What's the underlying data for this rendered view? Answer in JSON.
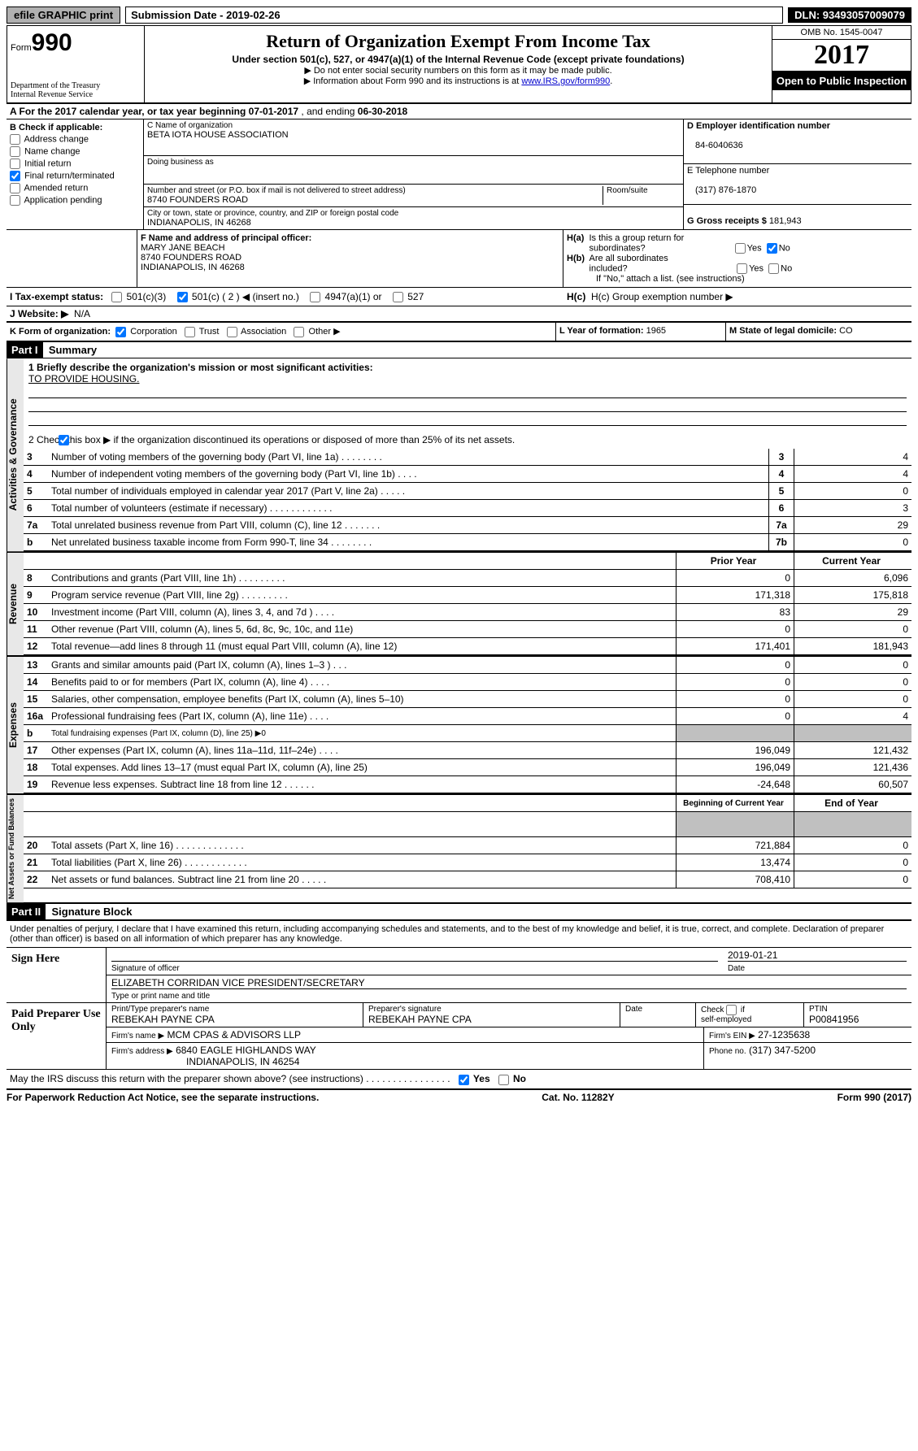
{
  "top": {
    "efile": "efile GRAPHIC print",
    "submission_label": "Submission Date - 2019-02-26",
    "dln": "DLN: 93493057009079"
  },
  "header": {
    "form_prefix": "Form",
    "form_number": "990",
    "dept": "Department of the Treasury",
    "irs": "Internal Revenue Service",
    "title": "Return of Organization Exempt From Income Tax",
    "subtitle": "Under section 501(c), 527, or 4947(a)(1) of the Internal Revenue Code (except private foundations)",
    "note1": "▶ Do not enter social security numbers on this form as it may be made public.",
    "note2_pre": "▶ Information about Form 990 and its instructions is at ",
    "note2_link": "www.IRS.gov/form990",
    "note2_post": ".",
    "omb": "OMB No. 1545-0047",
    "year": "2017",
    "open": "Open to Public Inspection"
  },
  "sectionA": {
    "label": "A  For the 2017 calendar year, or tax year beginning ",
    "begin": "07-01-2017",
    "mid": "  , and ending ",
    "end": "06-30-2018"
  },
  "b": {
    "label": "B Check if applicable:",
    "items": [
      "Address change",
      "Name change",
      "Initial return",
      "Final return/terminated",
      "Amended return",
      "Application pending"
    ],
    "checked_index": 3
  },
  "c": {
    "name_label": "C Name of organization",
    "name": "BETA IOTA HOUSE ASSOCIATION",
    "dba_label": "Doing business as",
    "dba": "",
    "street_label": "Number and street (or P.O. box if mail is not delivered to street address)",
    "room_label": "Room/suite",
    "street": "8740 FOUNDERS ROAD",
    "city_label": "City or town, state or province, country, and ZIP or foreign postal code",
    "city": "INDIANAPOLIS, IN  46268"
  },
  "d": {
    "label": "D Employer identification number",
    "val": "84-6040636"
  },
  "e": {
    "label": "E Telephone number",
    "val": "(317) 876-1870"
  },
  "g": {
    "label": "G Gross receipts $",
    "val": "181,943"
  },
  "f": {
    "label": "F  Name and address of principal officer:",
    "name": "MARY JANE BEACH",
    "street": "8740 FOUNDERS ROAD",
    "city": "INDIANAPOLIS, IN  46268"
  },
  "h": {
    "a_label": "H(a)  Is this a group return for subordinates?",
    "b_label": "H(b)  Are all subordinates included?",
    "note": "If \"No,\" attach a list. (see instructions)",
    "c_label": "H(c)  Group exemption number ▶",
    "yes": "Yes",
    "no": "No"
  },
  "i": {
    "label": "I  Tax-exempt status:",
    "opts": [
      "501(c)(3)",
      "501(c) ( 2 ) ◀ (insert no.)",
      "4947(a)(1) or",
      "527"
    ],
    "checked_index": 1
  },
  "j": {
    "label": "J  Website: ▶",
    "val": "N/A"
  },
  "k": {
    "label": "K Form of organization:",
    "opts": [
      "Corporation",
      "Trust",
      "Association",
      "Other ▶"
    ],
    "checked_index": 0
  },
  "l": {
    "label": "L Year of formation:",
    "val": "1965"
  },
  "m": {
    "label": "M State of legal domicile:",
    "val": "CO"
  },
  "part1": {
    "header": "Part I",
    "title": "Summary"
  },
  "governance": {
    "title": "Activities & Governance",
    "line1_label": "1  Briefly describe the organization's mission or most significant activities:",
    "mission": "TO PROVIDE HOUSING.",
    "line2": "2   Check this box ▶      if the organization discontinued its operations or disposed of more than 25% of its net assets.",
    "rows": [
      {
        "n": "3",
        "desc": "Number of voting members of the governing body (Part VI, line 1a)   .    .    .    .    .    .    .    .",
        "cell": "3",
        "v": "4"
      },
      {
        "n": "4",
        "desc": "Number of independent voting members of the governing body (Part VI, line 1b)   .    .    .    .",
        "cell": "4",
        "v": "4"
      },
      {
        "n": "5",
        "desc": "Total number of individuals employed in calendar year 2017 (Part V, line 2a)   .    .    .    .    .",
        "cell": "5",
        "v": "0"
      },
      {
        "n": "6",
        "desc": "Total number of volunteers (estimate if necessary)   .    .    .    .    .    .    .    .    .    .    .    .",
        "cell": "6",
        "v": "3"
      },
      {
        "n": "7a",
        "desc": "Total unrelated business revenue from Part VIII, column (C), line 12   .    .    .    .    .    .    .",
        "cell": "7a",
        "v": "29"
      },
      {
        "n": "b",
        "desc": "Net unrelated business taxable income from Form 990-T, line 34   .    .    .    .    .    .    .    .",
        "cell": "7b",
        "v": "0"
      }
    ]
  },
  "revenue": {
    "title": "Revenue",
    "header": {
      "py": "Prior Year",
      "cy": "Current Year"
    },
    "rows": [
      {
        "n": "8",
        "desc": "Contributions and grants (Part VIII, line 1h)   .    .    .    .    .    .    .    .    .",
        "py": "0",
        "cy": "6,096"
      },
      {
        "n": "9",
        "desc": "Program service revenue (Part VIII, line 2g)   .    .    .    .    .    .    .    .    .",
        "py": "171,318",
        "cy": "175,818"
      },
      {
        "n": "10",
        "desc": "Investment income (Part VIII, column (A), lines 3, 4, and 7d )   .    .    .    .",
        "py": "83",
        "cy": "29"
      },
      {
        "n": "11",
        "desc": "Other revenue (Part VIII, column (A), lines 5, 6d, 8c, 9c, 10c, and 11e)",
        "py": "0",
        "cy": "0"
      },
      {
        "n": "12",
        "desc": "Total revenue—add lines 8 through 11 (must equal Part VIII, column (A), line 12)",
        "py": "171,401",
        "cy": "181,943"
      }
    ]
  },
  "expenses": {
    "title": "Expenses",
    "rows": [
      {
        "n": "13",
        "desc": "Grants and similar amounts paid (Part IX, column (A), lines 1–3 )   .    .    .",
        "py": "0",
        "cy": "0"
      },
      {
        "n": "14",
        "desc": "Benefits paid to or for members (Part IX, column (A), line 4)   .    .    .    .",
        "py": "0",
        "cy": "0"
      },
      {
        "n": "15",
        "desc": "Salaries, other compensation, employee benefits (Part IX, column (A), lines 5–10)",
        "py": "0",
        "cy": "0"
      },
      {
        "n": "16a",
        "desc": "Professional fundraising fees (Part IX, column (A), line 11e)   .    .    .    .",
        "py": "0",
        "cy": "4"
      },
      {
        "n": "b",
        "desc": "Total fundraising expenses (Part IX, column (D), line 25) ▶0",
        "py": "",
        "cy": "",
        "shade": true
      },
      {
        "n": "17",
        "desc": "Other expenses (Part IX, column (A), lines 11a–11d, 11f–24e)   .    .    .    .",
        "py": "196,049",
        "cy": "121,432"
      },
      {
        "n": "18",
        "desc": "Total expenses. Add lines 13–17 (must equal Part IX, column (A), line 25)",
        "py": "196,049",
        "cy": "121,436"
      },
      {
        "n": "19",
        "desc": "Revenue less expenses. Subtract line 18 from line 12   .    .    .    .    .    .",
        "py": "-24,648",
        "cy": "60,507"
      }
    ]
  },
  "netassets": {
    "title": "Net Assets or Fund Balances",
    "header": {
      "py": "Beginning of Current Year",
      "cy": "End of Year"
    },
    "rows": [
      {
        "n": "20",
        "desc": "Total assets (Part X, line 16)   .    .    .    .    .    .    .    .    .    .    .    .    .",
        "py": "721,884",
        "cy": "0"
      },
      {
        "n": "21",
        "desc": "Total liabilities (Part X, line 26)   .    .    .    .    .    .    .    .    .    .    .    .",
        "py": "13,474",
        "cy": "0"
      },
      {
        "n": "22",
        "desc": "Net assets or fund balances. Subtract line 21 from line 20   .    .    .    .    .",
        "py": "708,410",
        "cy": "0"
      }
    ]
  },
  "part2": {
    "header": "Part II",
    "title": "Signature Block"
  },
  "sig": {
    "perjury": "Under penalties of perjury, I declare that I have examined this return, including accompanying schedules and statements, and to the best of my knowledge and belief, it is true, correct, and complete. Declaration of preparer (other than officer) is based on all information of which preparer has any knowledge.",
    "sign_here": "Sign Here",
    "sig_officer": "Signature of officer",
    "date": "Date",
    "sig_date": "2019-01-21",
    "name_title": "ELIZABETH CORRIDAN  VICE PRESIDENT/SECRETARY",
    "type_print": "Type or print name and title",
    "paid": "Paid Preparer Use Only",
    "prep_name_label": "Print/Type preparer's name",
    "prep_name": "REBEKAH PAYNE CPA",
    "prep_sig_label": "Preparer's signature",
    "prep_sig": "REBEKAH PAYNE CPA",
    "prep_date_label": "Date",
    "check_self": "Check         if self-employed",
    "ptin_label": "PTIN",
    "ptin": "P00841956",
    "firm_name_label": "Firm's name      ▶",
    "firm_name": "MCM CPAS & ADVISORS LLP",
    "firm_ein_label": "Firm's EIN ▶",
    "firm_ein": "27-1235638",
    "firm_addr_label": "Firm's address ▶",
    "firm_addr1": "6840 EAGLE HIGHLANDS WAY",
    "firm_addr2": "INDIANAPOLIS, IN  46254",
    "phone_label": "Phone no.",
    "phone": "(317) 347-5200",
    "discuss": "May the IRS discuss this return with the preparer shown above? (see instructions)   .    .    .    .    .    .    .    .    .    .    .    .    .    .    .    .",
    "yes": "Yes",
    "no": "No"
  },
  "footer": {
    "paperwork": "For Paperwork Reduction Act Notice, see the separate instructions.",
    "cat": "Cat. No. 11282Y",
    "form": "Form 990 (2017)"
  }
}
